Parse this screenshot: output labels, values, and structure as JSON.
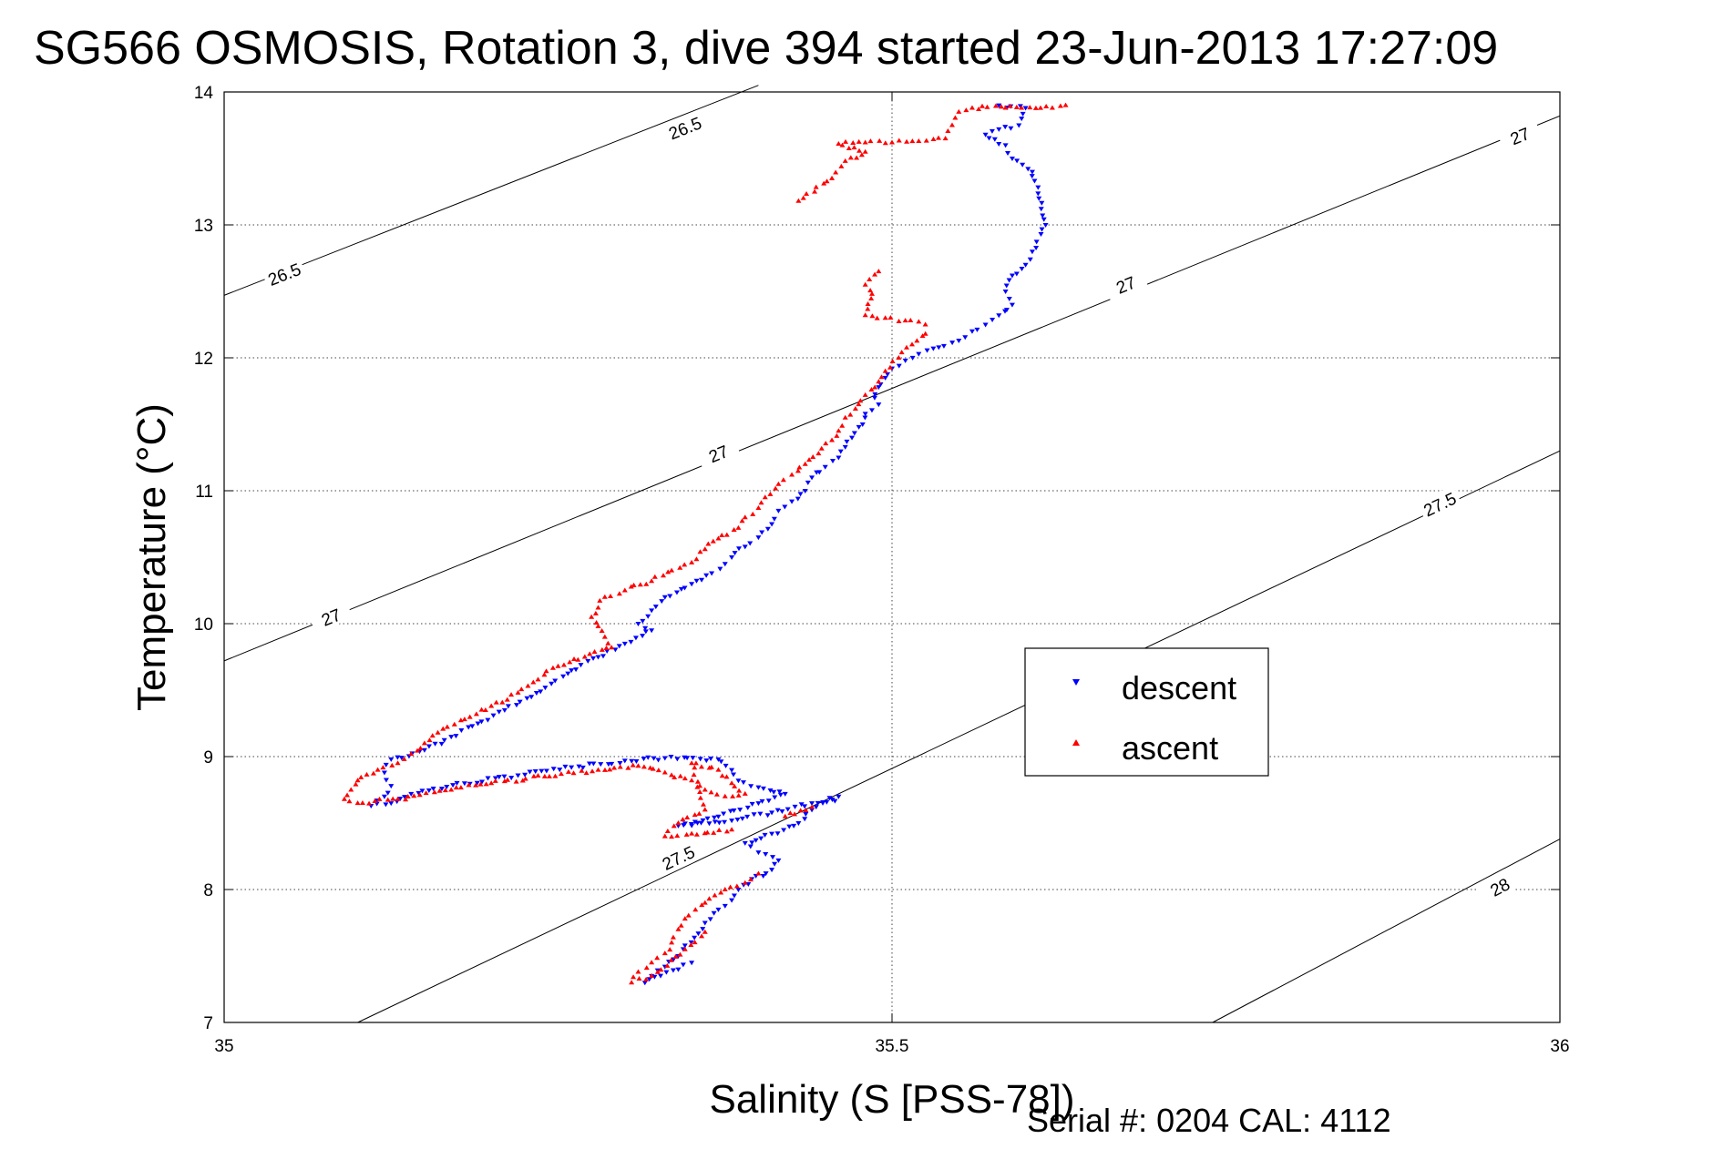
{
  "chart_data": {
    "type": "scatter",
    "title": "SG566 OSMOSIS, Rotation 3, dive 394 started 23-Jun-2013 17:27:09",
    "xlabel": "Salinity (S [PSS-78])",
    "ylabel": "Temperature (°C)",
    "xlim": [
      35,
      36
    ],
    "ylim": [
      7,
      14
    ],
    "x_ticks": [
      "35",
      "35.5",
      "36"
    ],
    "y_ticks": [
      "7",
      "8",
      "9",
      "10",
      "11",
      "12",
      "13",
      "14"
    ],
    "grid": "dotted",
    "legend_position": "right-center",
    "footer": "Serial #: 0204  CAL: 4112",
    "contours": [
      {
        "label": "26.5",
        "points": [
          [
            35,
            12.47
          ],
          [
            35.4,
            14.05
          ]
        ],
        "label_positions": [
          [
            35.045,
            12.63
          ],
          [
            35.345,
            13.73
          ]
        ]
      },
      {
        "label": "27",
        "points": [
          [
            35,
            9.72
          ],
          [
            36,
            13.82
          ]
        ],
        "label_positions": [
          [
            35.08,
            10.05
          ],
          [
            35.37,
            11.28
          ],
          [
            35.675,
            12.55
          ],
          [
            35.97,
            13.67
          ]
        ]
      },
      {
        "label": "27.5",
        "points": [
          [
            35.1,
            7.0
          ],
          [
            36,
            11.3
          ]
        ],
        "label_positions": [
          [
            35.34,
            8.24
          ],
          [
            35.91,
            10.9
          ]
        ]
      },
      {
        "label": "28",
        "points": [
          [
            35.74,
            7.0
          ],
          [
            36,
            8.38
          ]
        ],
        "label_positions": [
          [
            35.955,
            8.02
          ]
        ]
      }
    ],
    "series": [
      {
        "name": "descent",
        "marker": "triangle-down",
        "color": "#0000ff",
        "points": [
          [
            35.58,
            13.9
          ],
          [
            35.6,
            13.88
          ],
          [
            35.595,
            13.75
          ],
          [
            35.58,
            13.72
          ],
          [
            35.57,
            13.68
          ],
          [
            35.585,
            13.6
          ],
          [
            35.59,
            13.5
          ],
          [
            35.605,
            13.4
          ],
          [
            35.61,
            13.2
          ],
          [
            35.615,
            13.0
          ],
          [
            35.605,
            12.8
          ],
          [
            35.6,
            12.7
          ],
          [
            35.59,
            12.62
          ],
          [
            35.585,
            12.5
          ],
          [
            35.59,
            12.4
          ],
          [
            35.58,
            12.32
          ],
          [
            35.57,
            12.25
          ],
          [
            35.56,
            12.2
          ],
          [
            35.55,
            12.13
          ],
          [
            35.535,
            12.08
          ],
          [
            35.52,
            12.03
          ],
          [
            35.51,
            11.98
          ],
          [
            35.5,
            11.92
          ],
          [
            35.495,
            11.85
          ],
          [
            35.49,
            11.78
          ],
          [
            35.487,
            11.7
          ],
          [
            35.49,
            11.65
          ],
          [
            35.48,
            11.58
          ],
          [
            35.478,
            11.5
          ],
          [
            35.47,
            11.4
          ],
          [
            35.465,
            11.33
          ],
          [
            35.46,
            11.25
          ],
          [
            35.45,
            11.18
          ],
          [
            35.44,
            11.1
          ],
          [
            35.435,
            11.0
          ],
          [
            35.425,
            10.92
          ],
          [
            35.415,
            10.85
          ],
          [
            35.41,
            10.75
          ],
          [
            35.4,
            10.65
          ],
          [
            35.39,
            10.58
          ],
          [
            35.38,
            10.5
          ],
          [
            35.375,
            10.45
          ],
          [
            35.365,
            10.38
          ],
          [
            35.35,
            10.3
          ],
          [
            35.33,
            10.2
          ],
          [
            35.32,
            10.1
          ],
          [
            35.31,
            10.0
          ],
          [
            35.32,
            9.95
          ],
          [
            35.3,
            9.85
          ],
          [
            35.28,
            9.75
          ],
          [
            35.26,
            9.65
          ],
          [
            35.245,
            9.55
          ],
          [
            35.23,
            9.45
          ],
          [
            35.21,
            9.35
          ],
          [
            35.19,
            9.25
          ],
          [
            35.17,
            9.15
          ],
          [
            35.15,
            9.05
          ],
          [
            35.125,
            8.98
          ],
          [
            35.12,
            8.88
          ],
          [
            35.125,
            8.78
          ],
          [
            35.12,
            8.7
          ],
          [
            35.11,
            8.63
          ],
          [
            35.125,
            8.65
          ],
          [
            35.14,
            8.72
          ],
          [
            35.18,
            8.8
          ],
          [
            35.22,
            8.86
          ],
          [
            35.26,
            8.92
          ],
          [
            35.3,
            8.97
          ],
          [
            35.33,
            8.99
          ],
          [
            35.37,
            8.98
          ],
          [
            35.38,
            8.9
          ],
          [
            35.385,
            8.82
          ],
          [
            35.4,
            8.77
          ],
          [
            35.42,
            8.72
          ],
          [
            35.4,
            8.65
          ],
          [
            35.37,
            8.55
          ],
          [
            35.34,
            8.48
          ],
          [
            35.38,
            8.52
          ],
          [
            35.41,
            8.58
          ],
          [
            35.44,
            8.65
          ],
          [
            35.46,
            8.7
          ],
          [
            35.44,
            8.6
          ],
          [
            35.43,
            8.5
          ],
          [
            35.41,
            8.42
          ],
          [
            35.39,
            8.35
          ],
          [
            35.4,
            8.28
          ],
          [
            35.415,
            8.22
          ],
          [
            35.41,
            8.15
          ],
          [
            35.395,
            8.08
          ],
          [
            35.385,
            8.0
          ],
          [
            35.38,
            7.92
          ],
          [
            35.37,
            7.85
          ],
          [
            35.36,
            7.75
          ],
          [
            35.355,
            7.67
          ],
          [
            35.345,
            7.58
          ],
          [
            35.34,
            7.5
          ],
          [
            35.33,
            7.42
          ],
          [
            35.32,
            7.35
          ],
          [
            35.315,
            7.3
          ],
          [
            35.34,
            7.4
          ],
          [
            35.35,
            7.45
          ]
        ]
      },
      {
        "name": "ascent",
        "marker": "triangle-up",
        "color": "#ff0000",
        "points": [
          [
            35.63,
            13.9
          ],
          [
            35.62,
            13.88
          ],
          [
            35.585,
            13.88
          ],
          [
            35.56,
            13.88
          ],
          [
            35.55,
            13.85
          ],
          [
            35.545,
            13.75
          ],
          [
            35.54,
            13.65
          ],
          [
            35.52,
            13.63
          ],
          [
            35.5,
            13.62
          ],
          [
            35.48,
            13.62
          ],
          [
            35.46,
            13.61
          ],
          [
            35.48,
            13.55
          ],
          [
            35.465,
            13.48
          ],
          [
            35.455,
            13.35
          ],
          [
            35.43,
            13.18
          ],
          [
            35.49,
            12.65
          ],
          [
            35.48,
            12.55
          ],
          [
            35.485,
            12.48
          ],
          [
            35.48,
            12.32
          ],
          [
            35.495,
            12.3
          ],
          [
            35.51,
            12.28
          ],
          [
            35.525,
            12.25
          ],
          [
            35.525,
            12.18
          ],
          [
            35.515,
            12.1
          ],
          [
            35.505,
            12.0
          ],
          [
            35.495,
            11.9
          ],
          [
            35.49,
            11.82
          ],
          [
            35.48,
            11.72
          ],
          [
            35.475,
            11.65
          ],
          [
            35.465,
            11.55
          ],
          [
            35.46,
            11.45
          ],
          [
            35.455,
            11.38
          ],
          [
            35.445,
            11.28
          ],
          [
            35.435,
            11.2
          ],
          [
            35.425,
            11.12
          ],
          [
            35.415,
            11.05
          ],
          [
            35.405,
            10.95
          ],
          [
            35.4,
            10.87
          ],
          [
            35.39,
            10.8
          ],
          [
            35.385,
            10.72
          ],
          [
            35.37,
            10.64
          ],
          [
            35.36,
            10.56
          ],
          [
            35.35,
            10.46
          ],
          [
            35.335,
            10.4
          ],
          [
            35.32,
            10.32
          ],
          [
            35.3,
            10.25
          ],
          [
            35.285,
            10.2
          ],
          [
            35.28,
            10.12
          ],
          [
            35.275,
            10.05
          ],
          [
            35.28,
            9.98
          ],
          [
            35.285,
            9.9
          ],
          [
            35.29,
            9.82
          ],
          [
            35.27,
            9.75
          ],
          [
            35.25,
            9.68
          ],
          [
            35.235,
            9.58
          ],
          [
            35.22,
            9.48
          ],
          [
            35.2,
            9.38
          ],
          [
            35.18,
            9.28
          ],
          [
            35.16,
            9.18
          ],
          [
            35.15,
            9.1
          ],
          [
            35.14,
            9.02
          ],
          [
            35.13,
            8.95
          ],
          [
            35.115,
            8.9
          ],
          [
            35.1,
            8.82
          ],
          [
            35.095,
            8.75
          ],
          [
            35.09,
            8.68
          ],
          [
            35.1,
            8.65
          ],
          [
            35.13,
            8.68
          ],
          [
            35.17,
            8.75
          ],
          [
            35.2,
            8.8
          ],
          [
            35.24,
            8.85
          ],
          [
            35.28,
            8.9
          ],
          [
            35.31,
            8.93
          ],
          [
            35.33,
            8.88
          ],
          [
            35.35,
            8.82
          ],
          [
            35.36,
            8.75
          ],
          [
            35.375,
            8.7
          ],
          [
            35.39,
            8.72
          ],
          [
            35.38,
            8.8
          ],
          [
            35.37,
            8.9
          ],
          [
            35.35,
            8.95
          ],
          [
            35.36,
            8.6
          ],
          [
            35.34,
            8.5
          ],
          [
            35.33,
            8.4
          ],
          [
            35.35,
            8.42
          ],
          [
            35.38,
            8.45
          ],
          [
            35.42,
            8.55
          ],
          [
            35.44,
            8.62
          ],
          [
            35.4,
            8.12
          ],
          [
            35.39,
            8.05
          ],
          [
            35.375,
            8.0
          ],
          [
            35.36,
            7.9
          ],
          [
            35.345,
            7.78
          ],
          [
            35.34,
            7.7
          ],
          [
            35.335,
            7.6
          ],
          [
            35.33,
            7.52
          ],
          [
            35.32,
            7.45
          ],
          [
            35.31,
            7.38
          ],
          [
            35.305,
            7.3
          ],
          [
            35.32,
            7.35
          ],
          [
            35.345,
            7.55
          ],
          [
            35.36,
            7.68
          ]
        ]
      }
    ]
  }
}
